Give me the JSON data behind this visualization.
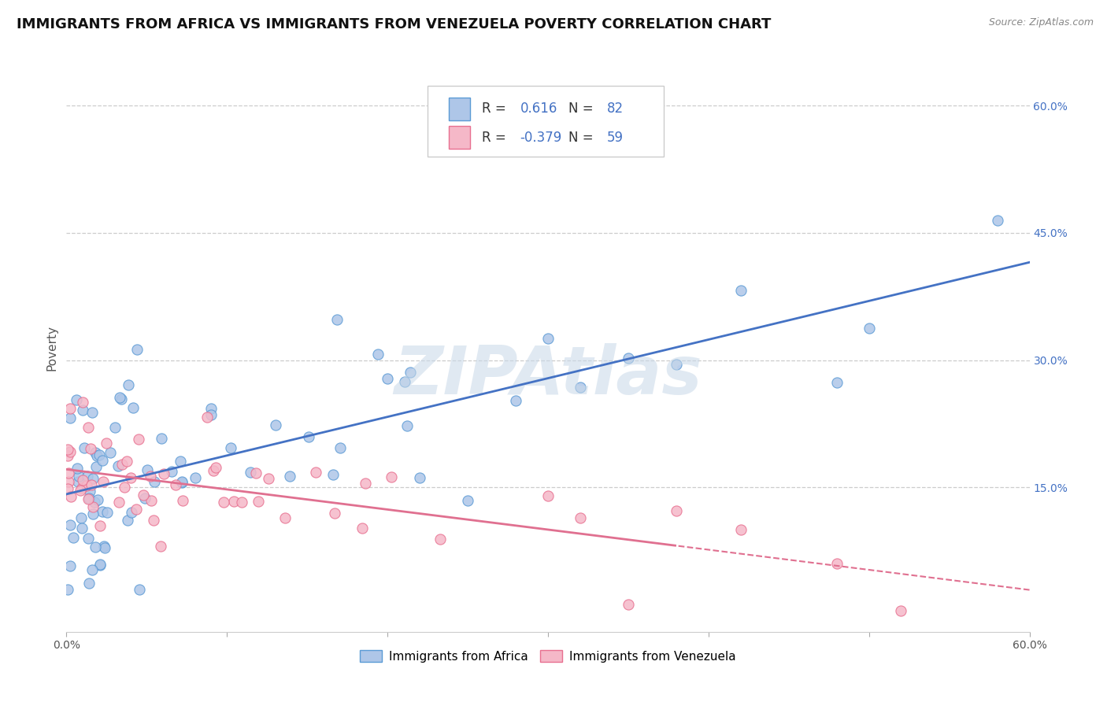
{
  "title": "IMMIGRANTS FROM AFRICA VS IMMIGRANTS FROM VENEZUELA POVERTY CORRELATION CHART",
  "source": "Source: ZipAtlas.com",
  "ylabel": "Poverty",
  "x_min": 0.0,
  "x_max": 0.6,
  "y_min": -0.02,
  "y_max": 0.65,
  "africa_R": 0.616,
  "africa_N": 82,
  "venezuela_R": -0.379,
  "venezuela_N": 59,
  "africa_color": "#aec6e8",
  "venezuela_color": "#f5b8c8",
  "africa_edge_color": "#5b9bd5",
  "venezuela_edge_color": "#e87090",
  "africa_line_color": "#4472c4",
  "venezuela_line_color": "#e07090",
  "background_color": "#ffffff",
  "grid_color": "#cccccc",
  "watermark_text": "ZIPAtlas",
  "legend_africa_label": "Immigrants from Africa",
  "legend_venezuela_label": "Immigrants from Venezuela",
  "title_fontsize": 13,
  "axis_label_fontsize": 11,
  "tick_fontsize": 10,
  "legend_fontsize": 12,
  "right_tick_color": "#4472c4"
}
